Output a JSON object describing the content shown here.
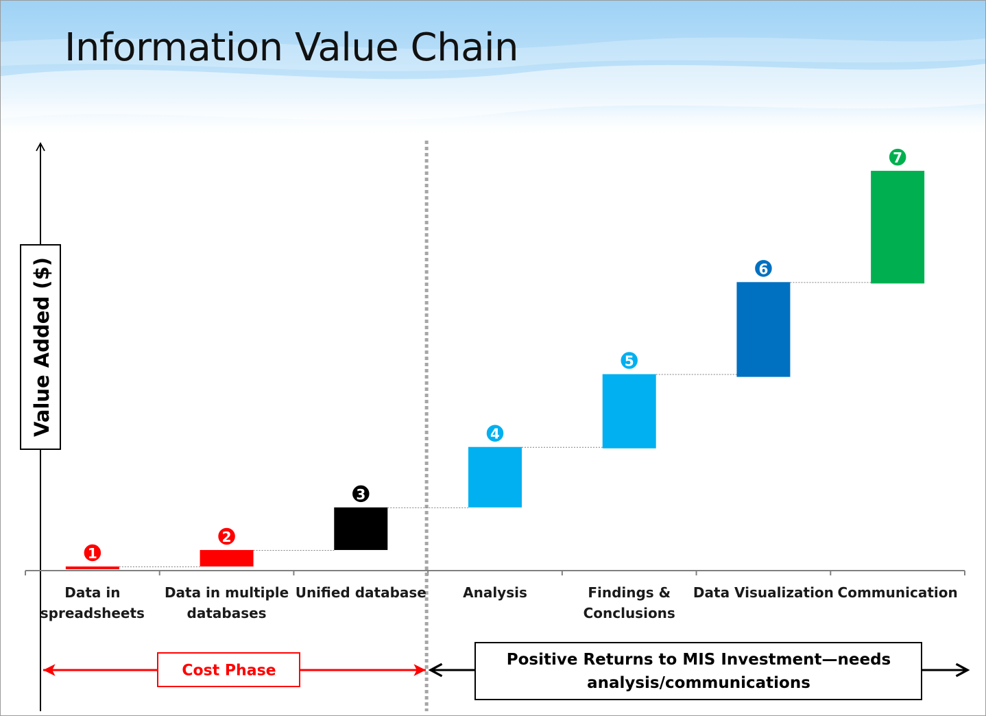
{
  "title": "Information Value Chain",
  "colors": {
    "red": "#ff0000",
    "black": "#000000",
    "light_blue": "#00b0f0",
    "dark_blue": "#0070c0",
    "green": "#00b050"
  },
  "chart_data": {
    "type": "bar",
    "variant": "waterfall",
    "title": "Information Value Chain",
    "ylabel": "Value Added ($)",
    "categories": [
      "Data in spreadsheets",
      "Data in multiple databases",
      "Unified database",
      "Analysis",
      "Findings & Conclusions",
      "Data Visualization",
      "Communication"
    ],
    "category_lines": [
      [
        "Data in",
        "spreadsheets"
      ],
      [
        "Data in multiple",
        "databases"
      ],
      [
        "Unified database"
      ],
      [
        "Analysis"
      ],
      [
        "Findings &",
        "Conclusions"
      ],
      [
        "Data Visualization"
      ],
      [
        "Communication"
      ]
    ],
    "step_numbers": [
      "1",
      "2",
      "3",
      "4",
      "5",
      "6",
      "7"
    ],
    "bars": [
      {
        "base": 0.2,
        "top": 0.6,
        "color": "#ff0000",
        "badge_style": "red"
      },
      {
        "base": 0.6,
        "top": 3.0,
        "color": "#ff0000",
        "badge_style": "red"
      },
      {
        "base": 3.0,
        "top": 9.2,
        "color": "#000000",
        "badge_style": "black"
      },
      {
        "base": 9.2,
        "top": 18.0,
        "color": "#00b0f0",
        "badge_style": "light_blue"
      },
      {
        "base": 17.8,
        "top": 28.6,
        "color": "#00b0f0",
        "badge_style": "light_blue"
      },
      {
        "base": 28.2,
        "top": 42.0,
        "color": "#0070c0",
        "badge_style": "dark_blue"
      },
      {
        "base": 41.8,
        "top": 58.2,
        "color": "#00b050",
        "badge_style": "green"
      }
    ],
    "ylim": [
      0,
      63
    ],
    "axis_ticks_shown": false,
    "grid": false,
    "phase_divider_after": "Unified database",
    "phases": [
      {
        "label": "Cost Phase",
        "color": "#ff0000"
      },
      {
        "label_lines": [
          "Positive Returns to MIS Investment—needs",
          "analysis/communications"
        ],
        "color": "#000000"
      }
    ]
  }
}
